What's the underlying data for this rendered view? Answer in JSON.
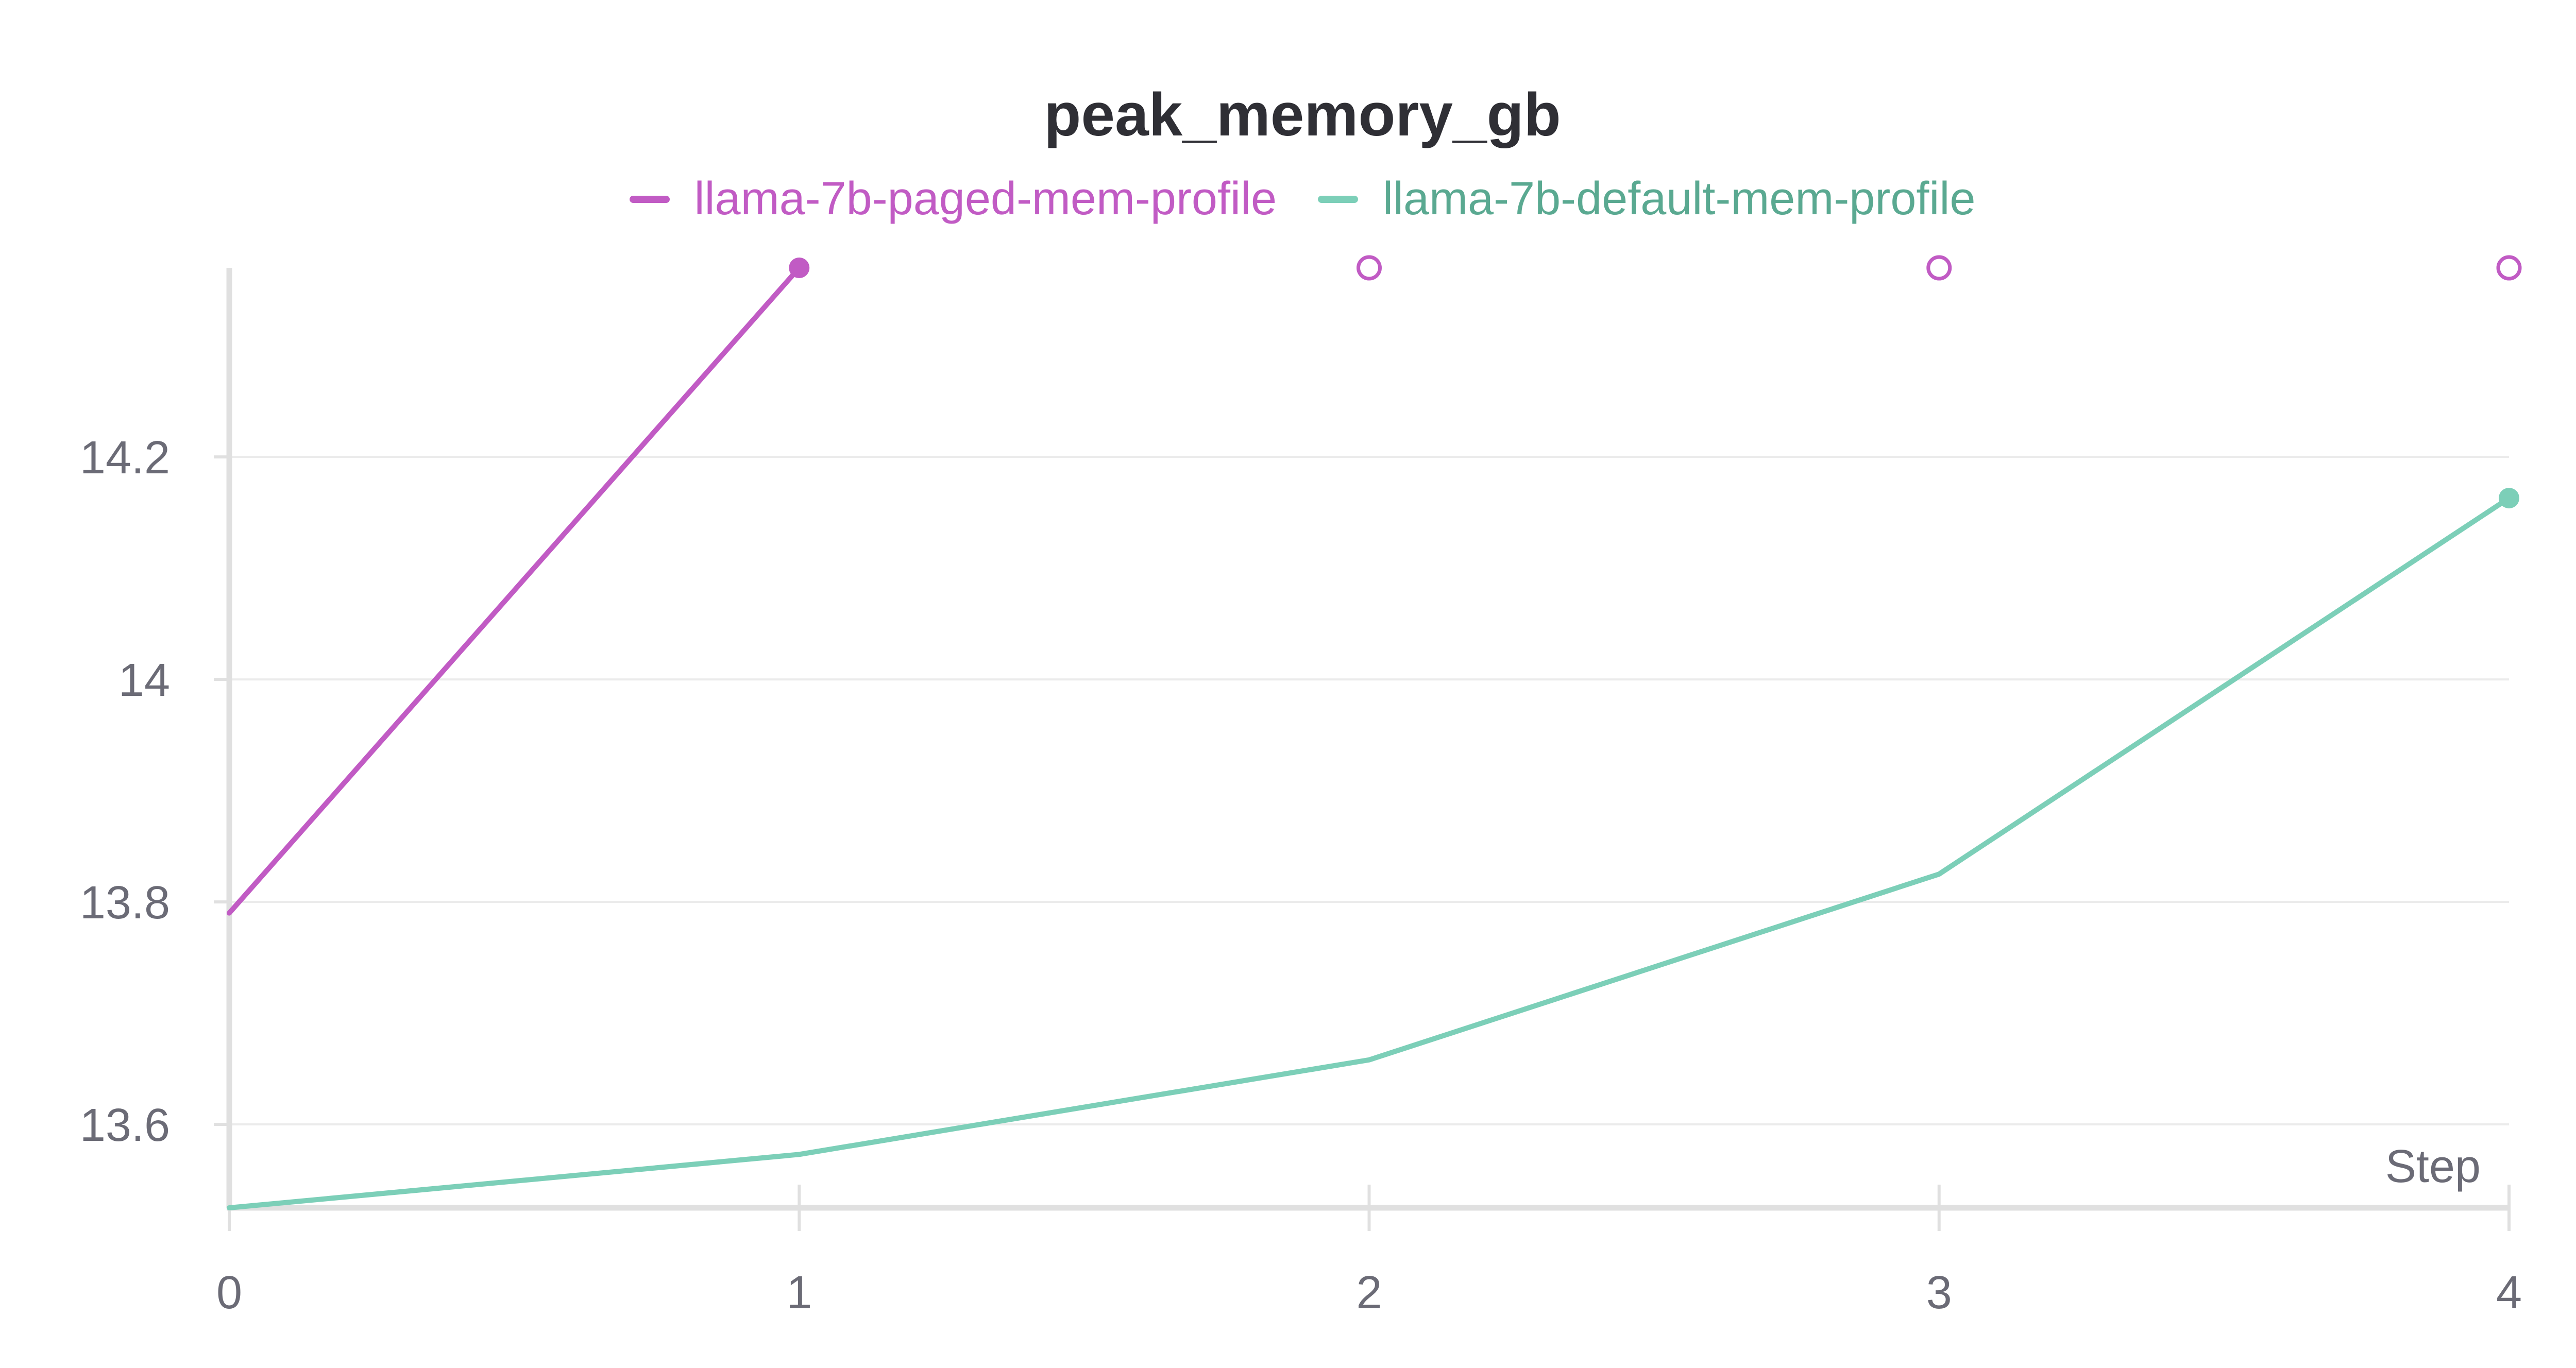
{
  "chart_data": {
    "type": "line",
    "title": "peak_memory_gb",
    "xlabel": "Step",
    "ylabel": "",
    "x_ticks": [
      "0",
      "1",
      "2",
      "3",
      "4"
    ],
    "y_ticks": [
      "13.6",
      "13.8",
      "14",
      "14.2"
    ],
    "xlim": [
      0,
      4
    ],
    "ylim": [
      13.525,
      14.37
    ],
    "grid": true,
    "legend_position": "top-center",
    "series": [
      {
        "name": "llama-7b-paged-mem-profile",
        "color": "#c15bc4",
        "x": [
          0,
          1
        ],
        "y": [
          13.79,
          14.37
        ],
        "clipped_marker_steps": [
          2,
          3,
          4
        ]
      },
      {
        "name": "llama-7b-default-mem-profile",
        "color": "#7ccfb8",
        "label_color": "#5aa991",
        "x": [
          0,
          1,
          2,
          3,
          4
        ],
        "y": [
          13.525,
          13.573,
          13.658,
          13.825,
          14.163
        ]
      }
    ]
  }
}
